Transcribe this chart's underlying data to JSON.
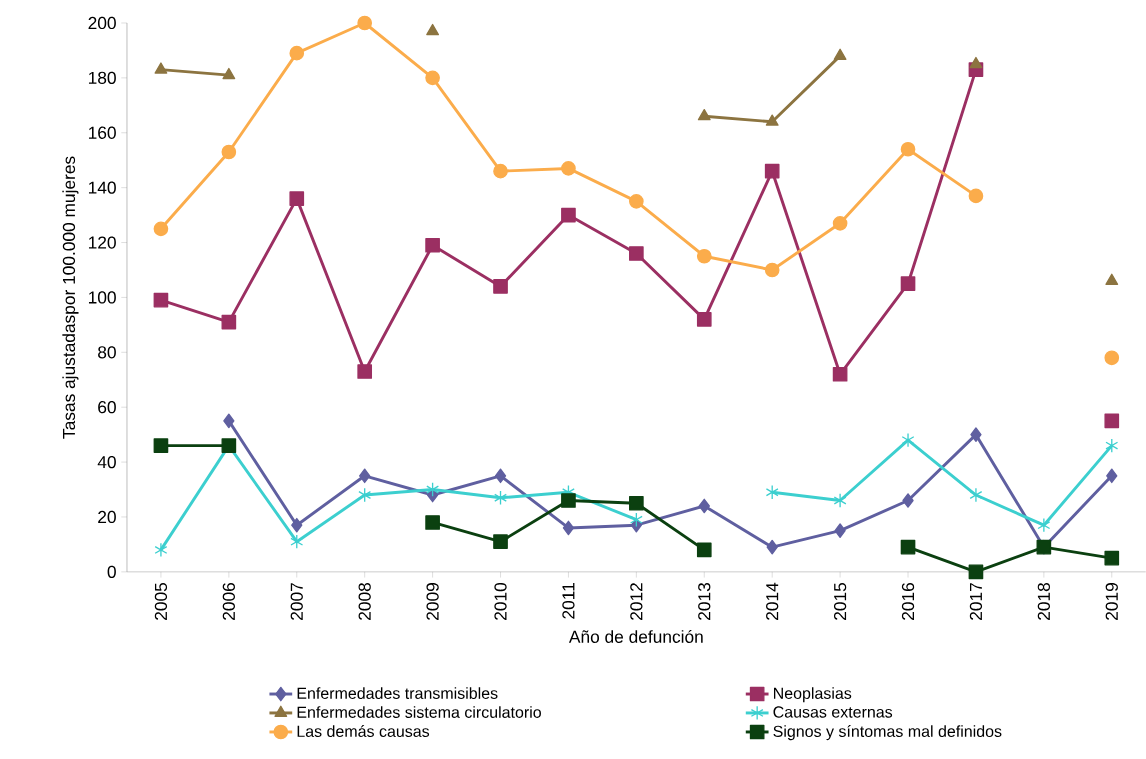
{
  "chart_data": {
    "type": "line",
    "xlabel": "Año de defunción",
    "ylabel": "Tasas ajustadaspor 100.000 mujeres",
    "categories": [
      "2005",
      "2006",
      "2007",
      "2008",
      "2009",
      "2010",
      "2011",
      "2012",
      "2013",
      "2014",
      "2015",
      "2016",
      "2017",
      "2018",
      "2019"
    ],
    "ylim": [
      0,
      200
    ],
    "yticks": [
      0,
      20,
      40,
      60,
      80,
      100,
      120,
      140,
      160,
      180,
      200
    ],
    "grid": false,
    "legend": "bottom",
    "series": [
      {
        "name": "Enfermedades transmisibles",
        "color": "#5f5fa0",
        "marker": "diamond",
        "values": [
          null,
          55,
          17,
          35,
          28,
          35,
          16,
          17,
          24,
          9,
          15,
          26,
          50,
          9,
          35
        ]
      },
      {
        "name": "Neoplasias",
        "color": "#9b2f62",
        "marker": "square",
        "values": [
          99,
          91,
          136,
          73,
          119,
          104,
          130,
          116,
          92,
          146,
          72,
          105,
          183,
          null,
          55
        ]
      },
      {
        "name": "Enfermedades sistema circulatorio",
        "color": "#8c7440",
        "marker": "triangle",
        "values": [
          183,
          181,
          null,
          null,
          197,
          null,
          null,
          null,
          166,
          164,
          188,
          null,
          185,
          null,
          106
        ]
      },
      {
        "name": "Causas externas",
        "color": "#3ccfcf",
        "marker": "cross",
        "values": [
          8,
          46,
          11,
          28,
          30,
          27,
          29,
          19,
          null,
          29,
          26,
          48,
          28,
          17,
          46
        ]
      },
      {
        "name": "Las demás causas",
        "color": "#fbac4b",
        "marker": "circle",
        "values": [
          125,
          153,
          189,
          200,
          180,
          146,
          147,
          135,
          115,
          110,
          127,
          154,
          137,
          null,
          78
        ]
      },
      {
        "name": "Signos y síntomas mal definidos",
        "color": "#0b4010",
        "marker": "square",
        "values": [
          46,
          46,
          null,
          null,
          18,
          11,
          26,
          25,
          8,
          null,
          null,
          9,
          0,
          9,
          5
        ]
      }
    ]
  }
}
